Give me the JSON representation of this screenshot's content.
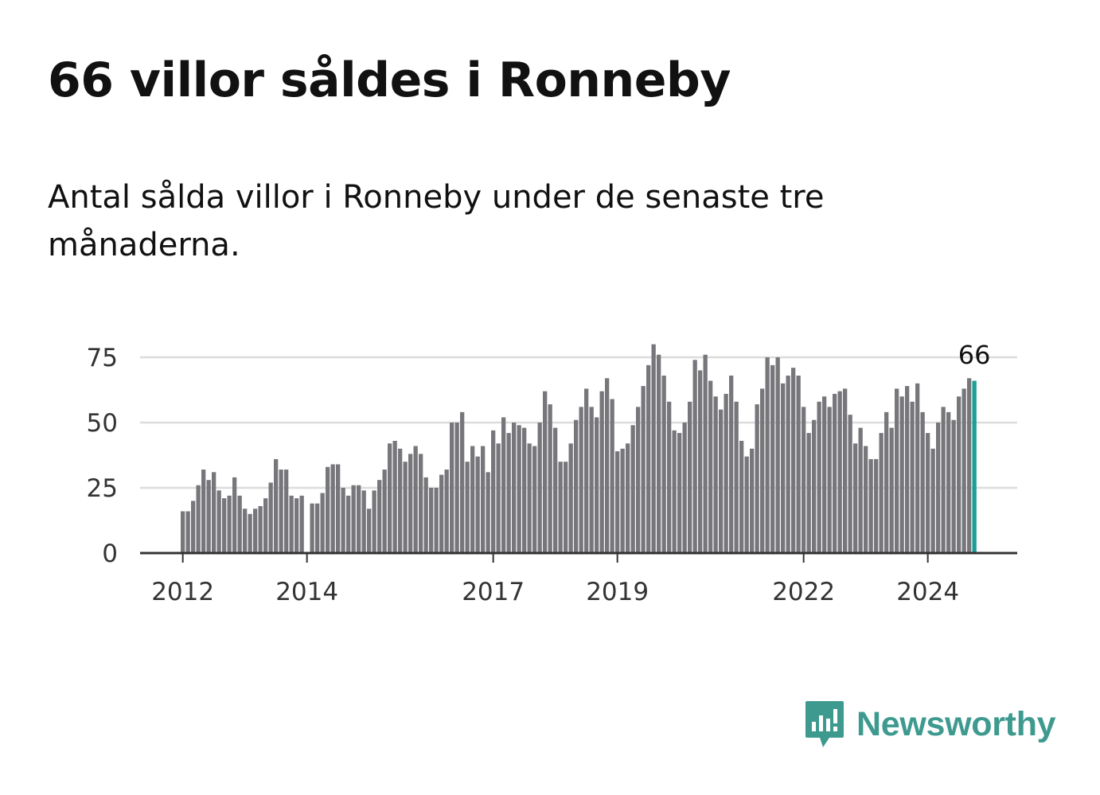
{
  "title": "66 villor såldes i Ronneby",
  "subtitle": "Antal sålda villor i Ronneby under de senaste tre månaderna.",
  "brand": {
    "name": "Newsworthy",
    "icon": "newsworthy-logo-icon",
    "color": "#3e9a8f"
  },
  "colors": {
    "bar": "#77767b",
    "highlight": "#1a9e96",
    "grid": "#dcdcdc",
    "axis": "#333333"
  },
  "chart_data": {
    "type": "bar",
    "title": "",
    "xlabel": "",
    "ylabel": "",
    "ylim": [
      0,
      80
    ],
    "yticks": [
      0,
      25,
      50,
      75
    ],
    "y_tick_labels": [
      "0",
      "25",
      "50",
      "75"
    ],
    "x_tick_labels": [
      {
        "label": "2012",
        "index": 0
      },
      {
        "label": "2014",
        "index": 24
      },
      {
        "label": "2017",
        "index": 60
      },
      {
        "label": "2019",
        "index": 84
      },
      {
        "label": "2022",
        "index": 120
      },
      {
        "label": "2024",
        "index": 144
      }
    ],
    "grid": true,
    "start": "2012-01",
    "values": [
      16,
      16,
      20,
      26,
      32,
      28,
      31,
      24,
      21,
      22,
      29,
      22,
      17,
      15,
      17,
      18,
      21,
      27,
      36,
      32,
      32,
      22,
      21,
      22,
      0,
      19,
      19,
      23,
      33,
      34,
      34,
      25,
      22,
      26,
      26,
      24,
      17,
      24,
      28,
      32,
      42,
      43,
      40,
      35,
      38,
      41,
      38,
      29,
      25,
      25,
      30,
      32,
      50,
      50,
      54,
      35,
      41,
      37,
      41,
      31,
      47,
      42,
      52,
      46,
      50,
      49,
      48,
      42,
      41,
      50,
      62,
      57,
      48,
      35,
      35,
      42,
      51,
      56,
      63,
      56,
      52,
      62,
      67,
      59,
      39,
      40,
      42,
      49,
      56,
      64,
      72,
      80,
      76,
      68,
      58,
      47,
      46,
      50,
      58,
      74,
      70,
      76,
      66,
      60,
      55,
      61,
      68,
      58,
      43,
      37,
      40,
      57,
      63,
      75,
      72,
      75,
      65,
      68,
      71,
      68,
      56,
      46,
      51,
      58,
      60,
      56,
      61,
      62,
      63,
      53,
      42,
      48,
      41,
      36,
      36,
      46,
      54,
      48,
      63,
      60,
      64,
      58,
      65,
      54,
      46,
      40,
      50,
      56,
      54,
      51,
      60,
      63,
      67,
      66
    ],
    "highlight": {
      "index": 153,
      "label": "66"
    }
  }
}
